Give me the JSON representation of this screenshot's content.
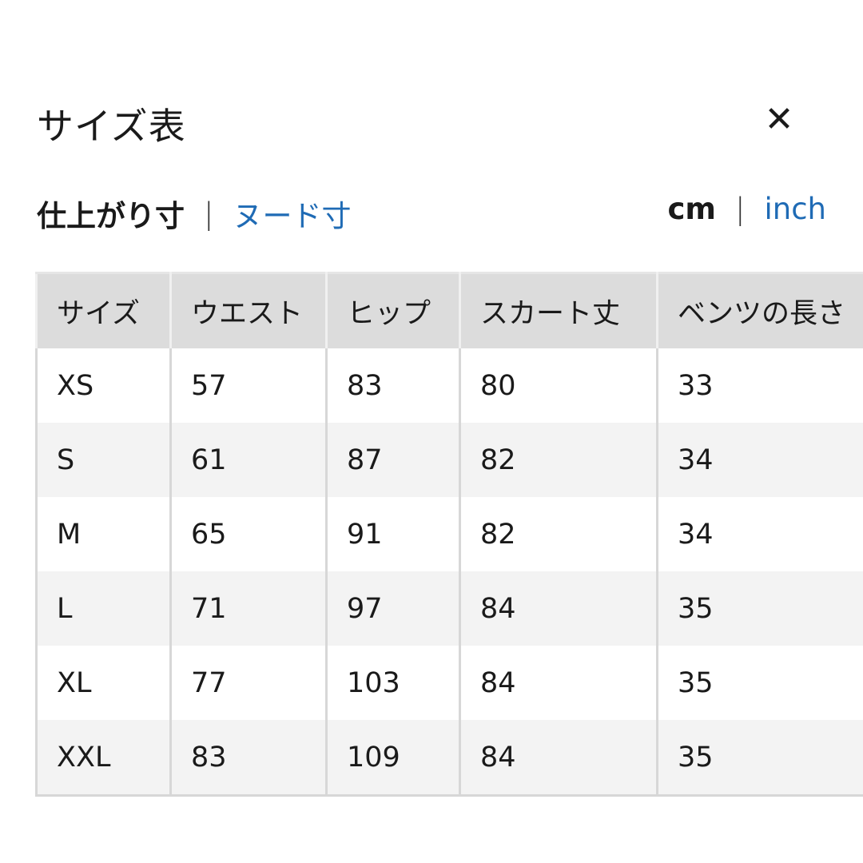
{
  "title": "サイズ表",
  "close_icon": "close-x-icon",
  "measure_tabs": [
    {
      "label": "仕上がり寸",
      "active": true
    },
    {
      "label": "ヌード寸",
      "active": false
    }
  ],
  "units": [
    {
      "label": "cm",
      "active": true
    },
    {
      "label": "inch",
      "active": false
    }
  ],
  "separator": "|",
  "colors": {
    "link": "#1f6bb5",
    "header_bg": "#dcdcdc",
    "stripe_bg": "#f3f3f3"
  },
  "table": {
    "headers": [
      "サイズ",
      "ウエスト",
      "ヒップ",
      "スカート丈",
      "ベンツの長さ"
    ],
    "rows": [
      [
        "XS",
        "57",
        "83",
        "80",
        "33"
      ],
      [
        "S",
        "61",
        "87",
        "82",
        "34"
      ],
      [
        "M",
        "65",
        "91",
        "82",
        "34"
      ],
      [
        "L",
        "71",
        "97",
        "84",
        "35"
      ],
      [
        "XL",
        "77",
        "103",
        "84",
        "35"
      ],
      [
        "XXL",
        "83",
        "109",
        "84",
        "35"
      ]
    ]
  }
}
